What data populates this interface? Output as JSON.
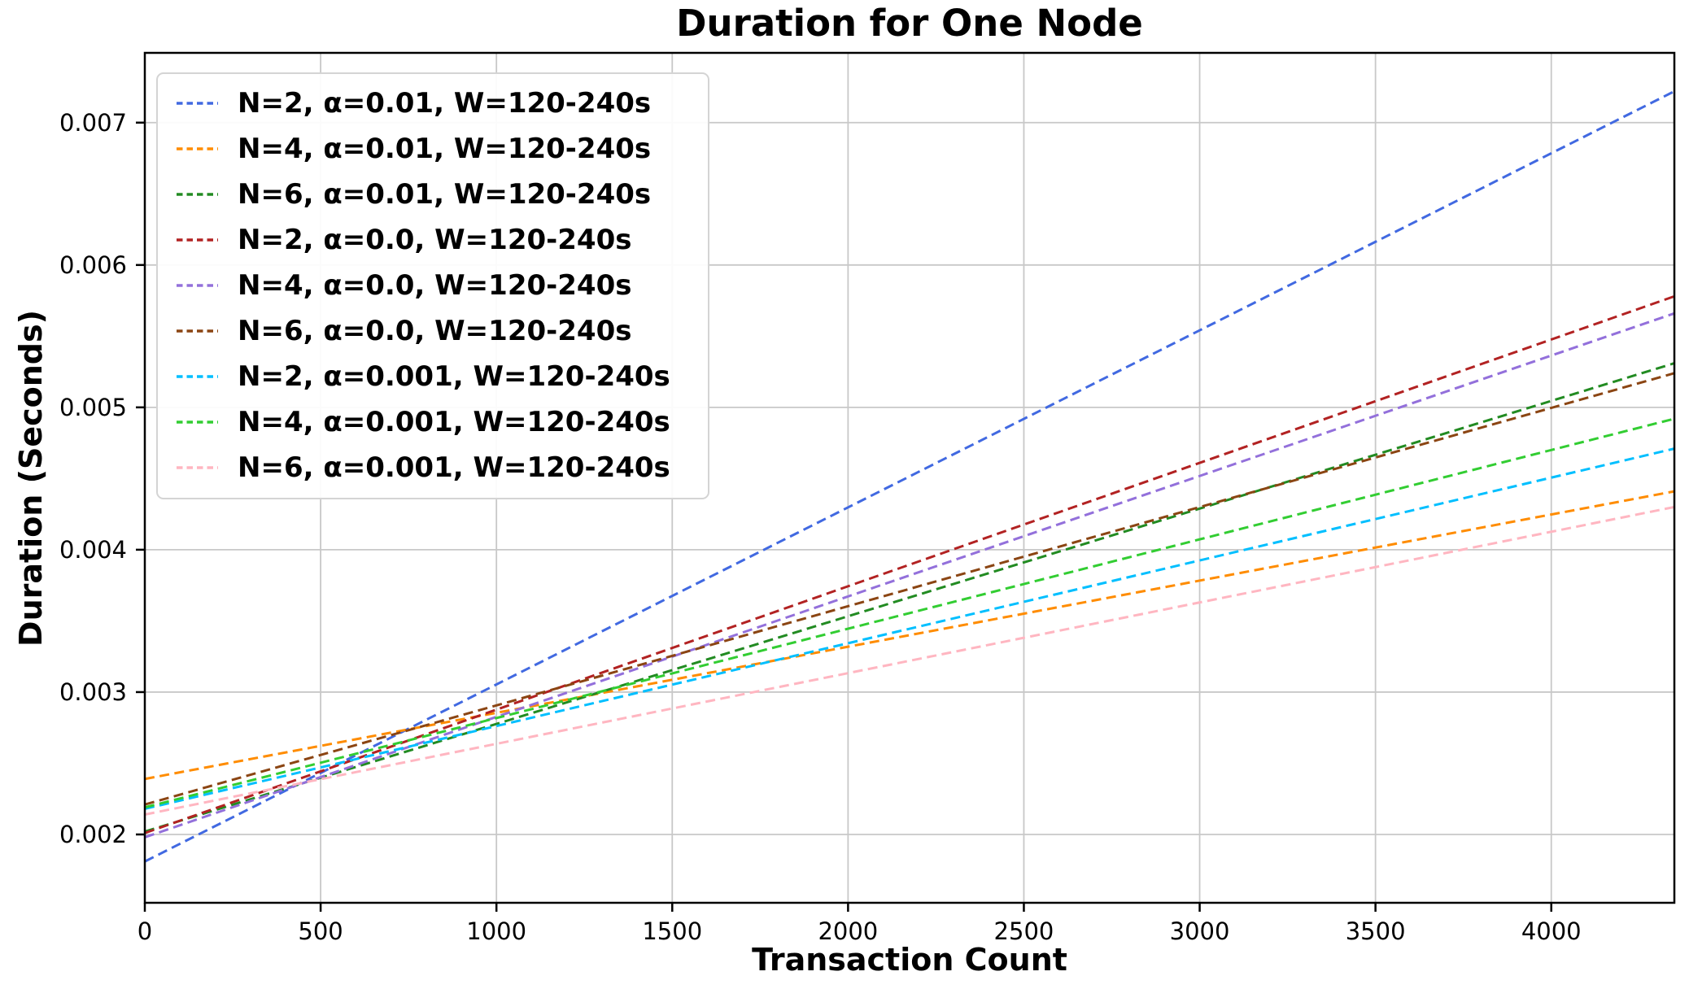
{
  "chart_data": {
    "type": "line",
    "title": "Duration for One Node",
    "xlabel": "Transaction Count",
    "ylabel": "Duration (Seconds)",
    "xlim": [
      0,
      4350
    ],
    "ylim": [
      0.00152,
      0.00749
    ],
    "x_ticks": [
      0,
      500,
      1000,
      1500,
      2000,
      2500,
      3000,
      3500,
      4000
    ],
    "y_ticks": [
      0.002,
      0.003,
      0.004,
      0.005,
      0.006,
      0.007
    ],
    "grid": true,
    "grid_color": "#c8c8c8",
    "spine_color": "#000000",
    "background_color": "#ffffff",
    "line_style": "dashed",
    "legend_position": "upper-left",
    "series": [
      {
        "name": "N=2, α=0.01, W=120-240s",
        "color": "#4169e1",
        "x": [
          0,
          4350
        ],
        "y": [
          0.00181,
          0.00722
        ]
      },
      {
        "name": "N=4, α=0.01, W=120-240s",
        "color": "#ff8c00",
        "x": [
          0,
          4350
        ],
        "y": [
          0.00239,
          0.00441
        ]
      },
      {
        "name": "N=6, α=0.01, W=120-240s",
        "color": "#228b22",
        "x": [
          0,
          4350
        ],
        "y": [
          0.00202,
          0.00531
        ]
      },
      {
        "name": "N=2, α=0.0, W=120-240s",
        "color": "#b22222",
        "x": [
          0,
          4350
        ],
        "y": [
          0.00201,
          0.00578
        ]
      },
      {
        "name": "N=4, α=0.0, W=120-240s",
        "color": "#9370db",
        "x": [
          0,
          4350
        ],
        "y": [
          0.00198,
          0.00566
        ]
      },
      {
        "name": "N=6, α=0.0, W=120-240s",
        "color": "#8b4513",
        "x": [
          0,
          4350
        ],
        "y": [
          0.00221,
          0.00524
        ]
      },
      {
        "name": "N=2, α=0.001, W=120-240s",
        "color": "#00bfff",
        "x": [
          0,
          4350
        ],
        "y": [
          0.00218,
          0.00471
        ]
      },
      {
        "name": "N=4, α=0.001, W=120-240s",
        "color": "#32cd32",
        "x": [
          0,
          4350
        ],
        "y": [
          0.00219,
          0.00492
        ]
      },
      {
        "name": "N=6, α=0.001, W=120-240s",
        "color": "#ffb6c1",
        "x": [
          0,
          4350
        ],
        "y": [
          0.00214,
          0.0043
        ]
      }
    ]
  }
}
